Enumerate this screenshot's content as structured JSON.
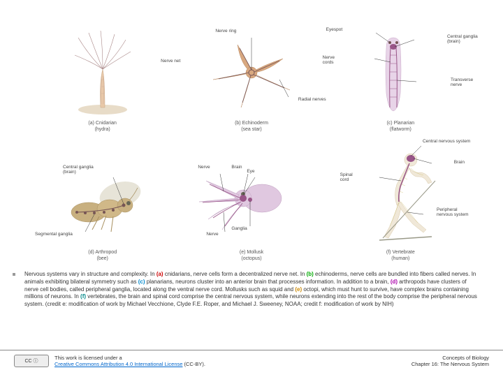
{
  "organisms": {
    "a": {
      "caption": "(a) Cnidarian\n(hydra)",
      "labels": [
        "Nerve net"
      ]
    },
    "b": {
      "caption": "(b) Echinoderm\n(sea star)",
      "labels": [
        "Nerve ring",
        "Radial nerves"
      ]
    },
    "c": {
      "caption": "(c) Planarian\n(flatworm)",
      "labels": [
        "Eyespot",
        "Central ganglia (brain)",
        "Nerve cords",
        "Transverse nerve"
      ]
    },
    "d": {
      "caption": "(d) Arthropod\n(bee)",
      "labels": [
        "Central ganglia (brain)",
        "Segmental ganglia"
      ]
    },
    "e": {
      "caption": "(e) Mollusk\n(octopus)",
      "labels": [
        "Nerve",
        "Brain",
        "Ganglia",
        "Eye",
        "Nerve"
      ]
    },
    "f": {
      "caption": "(f) Vertebrate\n(human)",
      "labels": [
        "Central nervous system",
        "Brain",
        "Spinal cord",
        "Peripheral nervous system"
      ]
    }
  },
  "main_caption": {
    "prefix": "Nervous systems vary in structure and complexity. In ",
    "a": "(a)",
    "a_text": " cnidarians, nerve cells form a decentralized nerve net. In ",
    "b": "(b)",
    "b_text": " echinoderms, nerve cells are bundled into fibers called nerves. In animals exhibiting bilateral symmetry such as ",
    "c": "(c)",
    "c_text": " planarians, neurons cluster into an anterior brain that processes information. In addition to a brain, ",
    "d": "(d)",
    "d_text": " arthropods have clusters of nerve cell bodies, called peripheral ganglia, located along the ventral nerve cord. Mollusks such as squid and ",
    "e": "(e)",
    "e_text": " octopi, which must hunt to survive, have complex brains containing millions of neurons. In ",
    "f": "(f)",
    "f_text": " vertebrates, the brain and spinal cord comprise the central nervous system, while neurons extending into the rest of the body comprise the peripheral nervous system. (credit e: modification of work by Michael Vecchione, Clyde F.E. Roper, and Michael J. Sweeney, NOAA; credit f: modification of work by NIH)"
  },
  "footer": {
    "license_intro": "This work is licensed under a",
    "license_link": "Creative Commons Attribution 4.0 International License",
    "license_suffix": " (CC-BY).",
    "concepts_title": "Concepts of Biology",
    "concepts_chapter": "Chapter 16: The Nervous System",
    "cc_badge": "CC ⓘ"
  },
  "colors": {
    "hydra_body": "#e8c8a8",
    "hydra_nerve": "#a88",
    "star_body": "#d8a880",
    "star_line": "#755",
    "flatworm_body": "#e8d4e8",
    "flatworm_nerve": "#958",
    "bee_body": "#c8b080",
    "bee_wing": "#ddd8c8",
    "bee_nerve": "#755",
    "octopus_body": "#e0c8e0",
    "octopus_nerve": "#958",
    "human_body": "#f0e8d8",
    "human_nerve": "#c8b858",
    "human_cns": "#958",
    "label_color": "#444"
  }
}
